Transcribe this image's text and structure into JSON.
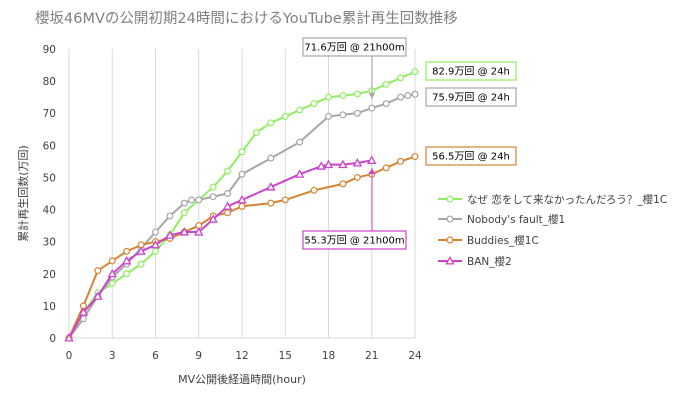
{
  "chart_data": {
    "type": "line",
    "title": "櫻坂46MVの公開初期24時間におけるYouTube累計再生回数推移",
    "xlabel": "MV公開後経過時間(hour)",
    "ylabel": "累計再生回数(万回)",
    "xlim": [
      0,
      24
    ],
    "ylim": [
      0,
      90
    ],
    "x_ticks": [
      "0",
      "3",
      "6",
      "9",
      "12",
      "15",
      "18",
      "21",
      "24"
    ],
    "y_ticks": [
      "0",
      "10",
      "20",
      "30",
      "40",
      "50",
      "60",
      "70",
      "80",
      "90"
    ],
    "grid": "vertical",
    "legend_position": "right",
    "series": [
      {
        "name": "なぜ 恋をして来なかったんだろう？_櫻1C",
        "color": "#90EE60",
        "marker": "circle",
        "points": [
          [
            0,
            0
          ],
          [
            1,
            8
          ],
          [
            2,
            14
          ],
          [
            3,
            17
          ],
          [
            4,
            20
          ],
          [
            5,
            23
          ],
          [
            6,
            27
          ],
          [
            7,
            32
          ],
          [
            8,
            39
          ],
          [
            9,
            43
          ],
          [
            10,
            47
          ],
          [
            11,
            52
          ],
          [
            12,
            58
          ],
          [
            13,
            64
          ],
          [
            14,
            67
          ],
          [
            15,
            69
          ],
          [
            16,
            71
          ],
          [
            17,
            73
          ],
          [
            18,
            75
          ],
          [
            19,
            75.5
          ],
          [
            20,
            76
          ],
          [
            21,
            77
          ],
          [
            22,
            79
          ],
          [
            23,
            81
          ],
          [
            24,
            82.9
          ]
        ]
      },
      {
        "name": "Nobody's fault_櫻1",
        "color": "#A6A6A6",
        "marker": "circle",
        "points": [
          [
            0,
            0
          ],
          [
            1,
            6
          ],
          [
            2,
            13
          ],
          [
            3,
            19
          ],
          [
            4,
            23
          ],
          [
            5,
            28
          ],
          [
            6,
            33
          ],
          [
            7,
            38
          ],
          [
            8,
            42
          ],
          [
            8.5,
            43
          ],
          [
            9,
            43
          ],
          [
            10,
            44
          ],
          [
            11,
            45
          ],
          [
            12,
            51
          ],
          [
            14,
            56
          ],
          [
            16,
            61
          ],
          [
            18,
            69
          ],
          [
            19,
            69.5
          ],
          [
            20,
            70
          ],
          [
            21,
            71.6
          ],
          [
            22,
            73
          ],
          [
            23,
            75
          ],
          [
            23.5,
            75.5
          ],
          [
            24,
            75.9
          ]
        ]
      },
      {
        "name": "Buddies_櫻1C",
        "color": "#D58331",
        "marker": "circle",
        "points": [
          [
            0,
            0
          ],
          [
            1,
            10
          ],
          [
            2,
            21
          ],
          [
            3,
            24
          ],
          [
            4,
            27
          ],
          [
            5,
            29
          ],
          [
            6,
            30
          ],
          [
            7,
            31
          ],
          [
            8,
            33
          ],
          [
            9,
            35
          ],
          [
            10,
            38
          ],
          [
            11,
            39
          ],
          [
            12,
            41
          ],
          [
            14,
            42
          ],
          [
            15,
            43
          ],
          [
            17,
            46
          ],
          [
            19,
            48
          ],
          [
            20,
            50
          ],
          [
            21,
            51
          ],
          [
            22,
            53
          ],
          [
            23,
            55
          ],
          [
            24,
            56.5
          ]
        ]
      },
      {
        "name": "BAN_櫻2",
        "color": "#CC44CC",
        "marker": "triangle",
        "points": [
          [
            0,
            0
          ],
          [
            1,
            8
          ],
          [
            2,
            13
          ],
          [
            3,
            20
          ],
          [
            4,
            24
          ],
          [
            5,
            27
          ],
          [
            6,
            29
          ],
          [
            7,
            32
          ],
          [
            8,
            33
          ],
          [
            9,
            33
          ],
          [
            10,
            37
          ],
          [
            11,
            41
          ],
          [
            12,
            43
          ],
          [
            14,
            47
          ],
          [
            16,
            51
          ],
          [
            17.5,
            53.5
          ],
          [
            18,
            54
          ],
          [
            19,
            54
          ],
          [
            20,
            54.5
          ],
          [
            21,
            55.3
          ]
        ]
      }
    ],
    "annotations": [
      {
        "text": "82.9万回 @ 24h",
        "border": "#90EE60"
      },
      {
        "text": "75.9万回 @ 24h",
        "border": "#A6A6A6"
      },
      {
        "text": "56.5万回 @ 24h",
        "border": "#D58331"
      },
      {
        "text": "71.6万回 @ 21h00m",
        "border": "#A6A6A6"
      },
      {
        "text": "55.3万回 @ 21h00m",
        "border": "#CC44CC"
      }
    ]
  }
}
